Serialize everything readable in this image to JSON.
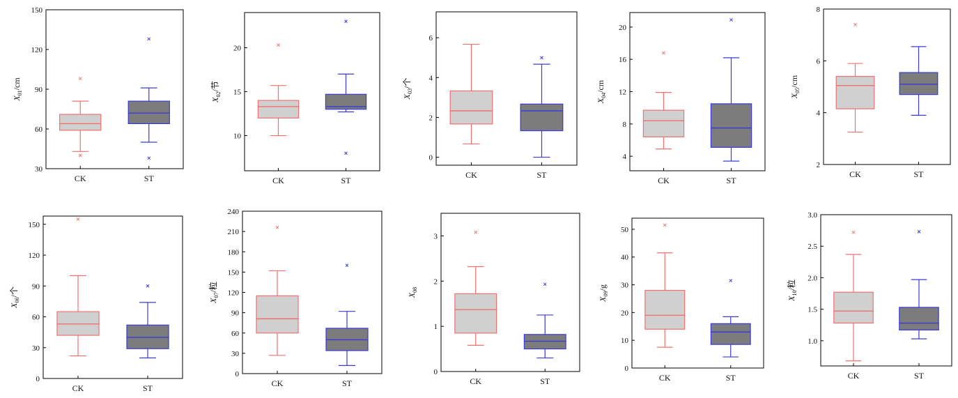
{
  "colors": {
    "ck": "#f07070",
    "st": "#3a3ad8",
    "ck_fill": "#d0d0d0",
    "st_fill": "#7c7c7c",
    "frame": "#000000"
  },
  "chart_data": [
    {
      "type": "box",
      "ylabel_sym": "X",
      "ylabel_sub": "01",
      "ylabel_unit": "/cm",
      "ylim": [
        30,
        150
      ],
      "yticks": [
        30,
        60,
        90,
        120,
        150
      ],
      "ytick_labels": [
        "30",
        "60",
        "90",
        "120",
        "150"
      ],
      "categories": [
        "CK",
        "ST"
      ],
      "boxes": [
        {
          "whisker_low": 43,
          "q1": 59,
          "median": 64,
          "q3": 71,
          "whisker_high": 81,
          "outliers": [
            98,
            40
          ]
        },
        {
          "whisker_low": 50,
          "q1": 64,
          "median": 72,
          "q3": 81,
          "whisker_high": 91,
          "outliers": [
            128,
            38
          ]
        }
      ]
    },
    {
      "type": "box",
      "ylabel_sym": "X",
      "ylabel_sub": "02",
      "ylabel_unit": "/节",
      "ylim": [
        6,
        24
      ],
      "yticks": [
        10,
        15,
        20
      ],
      "ytick_labels": [
        "10",
        "15",
        "20"
      ],
      "categories": [
        "CK",
        "ST"
      ],
      "boxes": [
        {
          "whisker_low": 10,
          "q1": 12,
          "median": 13.3,
          "q3": 14,
          "whisker_high": 15.7,
          "outliers": [
            20.3
          ]
        },
        {
          "whisker_low": 12.7,
          "q1": 13,
          "median": 13.3,
          "q3": 14.7,
          "whisker_high": 17,
          "outliers": [
            23,
            8
          ]
        }
      ]
    },
    {
      "type": "box",
      "ylabel_sym": "X",
      "ylabel_sub": "03",
      "ylabel_unit": "/个",
      "ylim": [
        -0.4,
        7.3
      ],
      "yticks": [
        0,
        2,
        4,
        6
      ],
      "ytick_labels": [
        "0",
        "2",
        "4",
        "6"
      ],
      "categories": [
        "CK",
        "ST"
      ],
      "boxes": [
        {
          "whisker_low": 0.67,
          "q1": 1.67,
          "median": 2.33,
          "q3": 3.33,
          "whisker_high": 5.67,
          "outliers": []
        },
        {
          "whisker_low": 0,
          "q1": 1.33,
          "median": 2.33,
          "q3": 2.67,
          "whisker_high": 4.67,
          "outliers": [
            5
          ]
        }
      ]
    },
    {
      "type": "box",
      "ylabel_sym": "X",
      "ylabel_sub": "04",
      "ylabel_unit": "/cm",
      "ylim": [
        2.2,
        21.8
      ],
      "yticks": [
        4,
        8,
        12,
        16,
        20
      ],
      "ytick_labels": [
        "4",
        "8",
        "12",
        "16",
        "20"
      ],
      "categories": [
        "CK",
        "ST"
      ],
      "boxes": [
        {
          "whisker_low": 4.9,
          "q1": 6.4,
          "median": 8.4,
          "q3": 9.7,
          "whisker_high": 11.9,
          "outliers": [
            16.8
          ]
        },
        {
          "whisker_low": 3.4,
          "q1": 5.1,
          "median": 7.5,
          "q3": 10.5,
          "whisker_high": 16.2,
          "outliers": [
            20.9
          ]
        }
      ]
    },
    {
      "type": "box",
      "ylabel_sym": "X",
      "ylabel_sub": "05",
      "ylabel_unit": "/cm",
      "ylim": [
        2,
        8
      ],
      "yticks": [
        2,
        4,
        6,
        8
      ],
      "ytick_labels": [
        "2",
        "4",
        "6",
        "8"
      ],
      "categories": [
        "CK",
        "ST"
      ],
      "boxes": [
        {
          "whisker_low": 3.25,
          "q1": 4.15,
          "median": 5.05,
          "q3": 5.4,
          "whisker_high": 5.9,
          "outliers": [
            7.4
          ]
        },
        {
          "whisker_low": 3.9,
          "q1": 4.7,
          "median": 5.1,
          "q3": 5.55,
          "whisker_high": 6.55,
          "outliers": []
        }
      ]
    },
    {
      "type": "box",
      "ylabel_sym": "X",
      "ylabel_sub": "06",
      "ylabel_unit": "/个",
      "ylim": [
        0,
        158
      ],
      "yticks": [
        0,
        30,
        60,
        90,
        120,
        150
      ],
      "ytick_labels": [
        "0",
        "30",
        "60",
        "90",
        "120",
        "150"
      ],
      "categories": [
        "CK",
        "ST"
      ],
      "boxes": [
        {
          "whisker_low": 22,
          "q1": 42,
          "median": 53,
          "q3": 65,
          "whisker_high": 100,
          "outliers": [
            155
          ]
        },
        {
          "whisker_low": 20,
          "q1": 29,
          "median": 40,
          "q3": 52,
          "whisker_high": 74,
          "outliers": [
            90
          ]
        }
      ]
    },
    {
      "type": "box",
      "ylabel_sym": "X",
      "ylabel_sub": "07",
      "ylabel_unit": "/粒",
      "ylim": [
        0,
        240
      ],
      "yticks": [
        0,
        30,
        60,
        90,
        120,
        150,
        180,
        210,
        240
      ],
      "ytick_labels": [
        "0",
        "30",
        "60",
        "90",
        "120",
        "150",
        "180",
        "210",
        "240"
      ],
      "categories": [
        "CK",
        "ST"
      ],
      "boxes": [
        {
          "whisker_low": 27,
          "q1": 60,
          "median": 81,
          "q3": 115,
          "whisker_high": 152,
          "outliers": [
            216
          ]
        },
        {
          "whisker_low": 12,
          "q1": 34,
          "median": 50,
          "q3": 67,
          "whisker_high": 92,
          "outliers": [
            160
          ]
        }
      ]
    },
    {
      "type": "box",
      "ylabel_sym": "X",
      "ylabel_sub": "08",
      "ylabel_unit": "",
      "ylim": [
        0,
        3.5
      ],
      "yticks": [
        0,
        1,
        2,
        3
      ],
      "ytick_labels": [
        "0",
        "1",
        "2",
        "3"
      ],
      "categories": [
        "CK",
        "ST"
      ],
      "boxes": [
        {
          "whisker_low": 0.58,
          "q1": 0.85,
          "median": 1.37,
          "q3": 1.72,
          "whisker_high": 2.32,
          "outliers": [
            3.08
          ]
        },
        {
          "whisker_low": 0.3,
          "q1": 0.5,
          "median": 0.67,
          "q3": 0.82,
          "whisker_high": 1.25,
          "outliers": [
            1.93
          ]
        }
      ]
    },
    {
      "type": "box",
      "ylabel_sym": "X",
      "ylabel_sub": "09",
      "ylabel_unit": "/g",
      "ylim": [
        0,
        54
      ],
      "yticks": [
        0,
        10,
        20,
        30,
        40,
        50
      ],
      "ytick_labels": [
        "0",
        "10",
        "20",
        "30",
        "40",
        "50"
      ],
      "categories": [
        "CK",
        "ST"
      ],
      "boxes": [
        {
          "whisker_low": 7.5,
          "q1": 14,
          "median": 19,
          "q3": 28,
          "whisker_high": 41.5,
          "outliers": [
            51.5
          ]
        },
        {
          "whisker_low": 4,
          "q1": 8.5,
          "median": 13,
          "q3": 16,
          "whisker_high": 18.5,
          "outliers": [
            31.5
          ]
        }
      ]
    },
    {
      "type": "box",
      "ylabel_sym": "X",
      "ylabel_sub": "10",
      "ylabel_unit": "/粒",
      "ylim": [
        0.6,
        3.0
      ],
      "yticks": [
        1.0,
        1.5,
        2.0,
        2.5,
        3.0
      ],
      "ytick_labels": [
        "1.0",
        "1.5",
        "2.0",
        "2.5",
        "3.0"
      ],
      "categories": [
        "CK",
        "ST"
      ],
      "boxes": [
        {
          "whisker_low": 0.68,
          "q1": 1.28,
          "median": 1.47,
          "q3": 1.77,
          "whisker_high": 2.37,
          "outliers": [
            2.72
          ]
        },
        {
          "whisker_low": 1.03,
          "q1": 1.17,
          "median": 1.28,
          "q3": 1.53,
          "whisker_high": 1.97,
          "outliers": [
            2.73
          ]
        }
      ]
    }
  ]
}
